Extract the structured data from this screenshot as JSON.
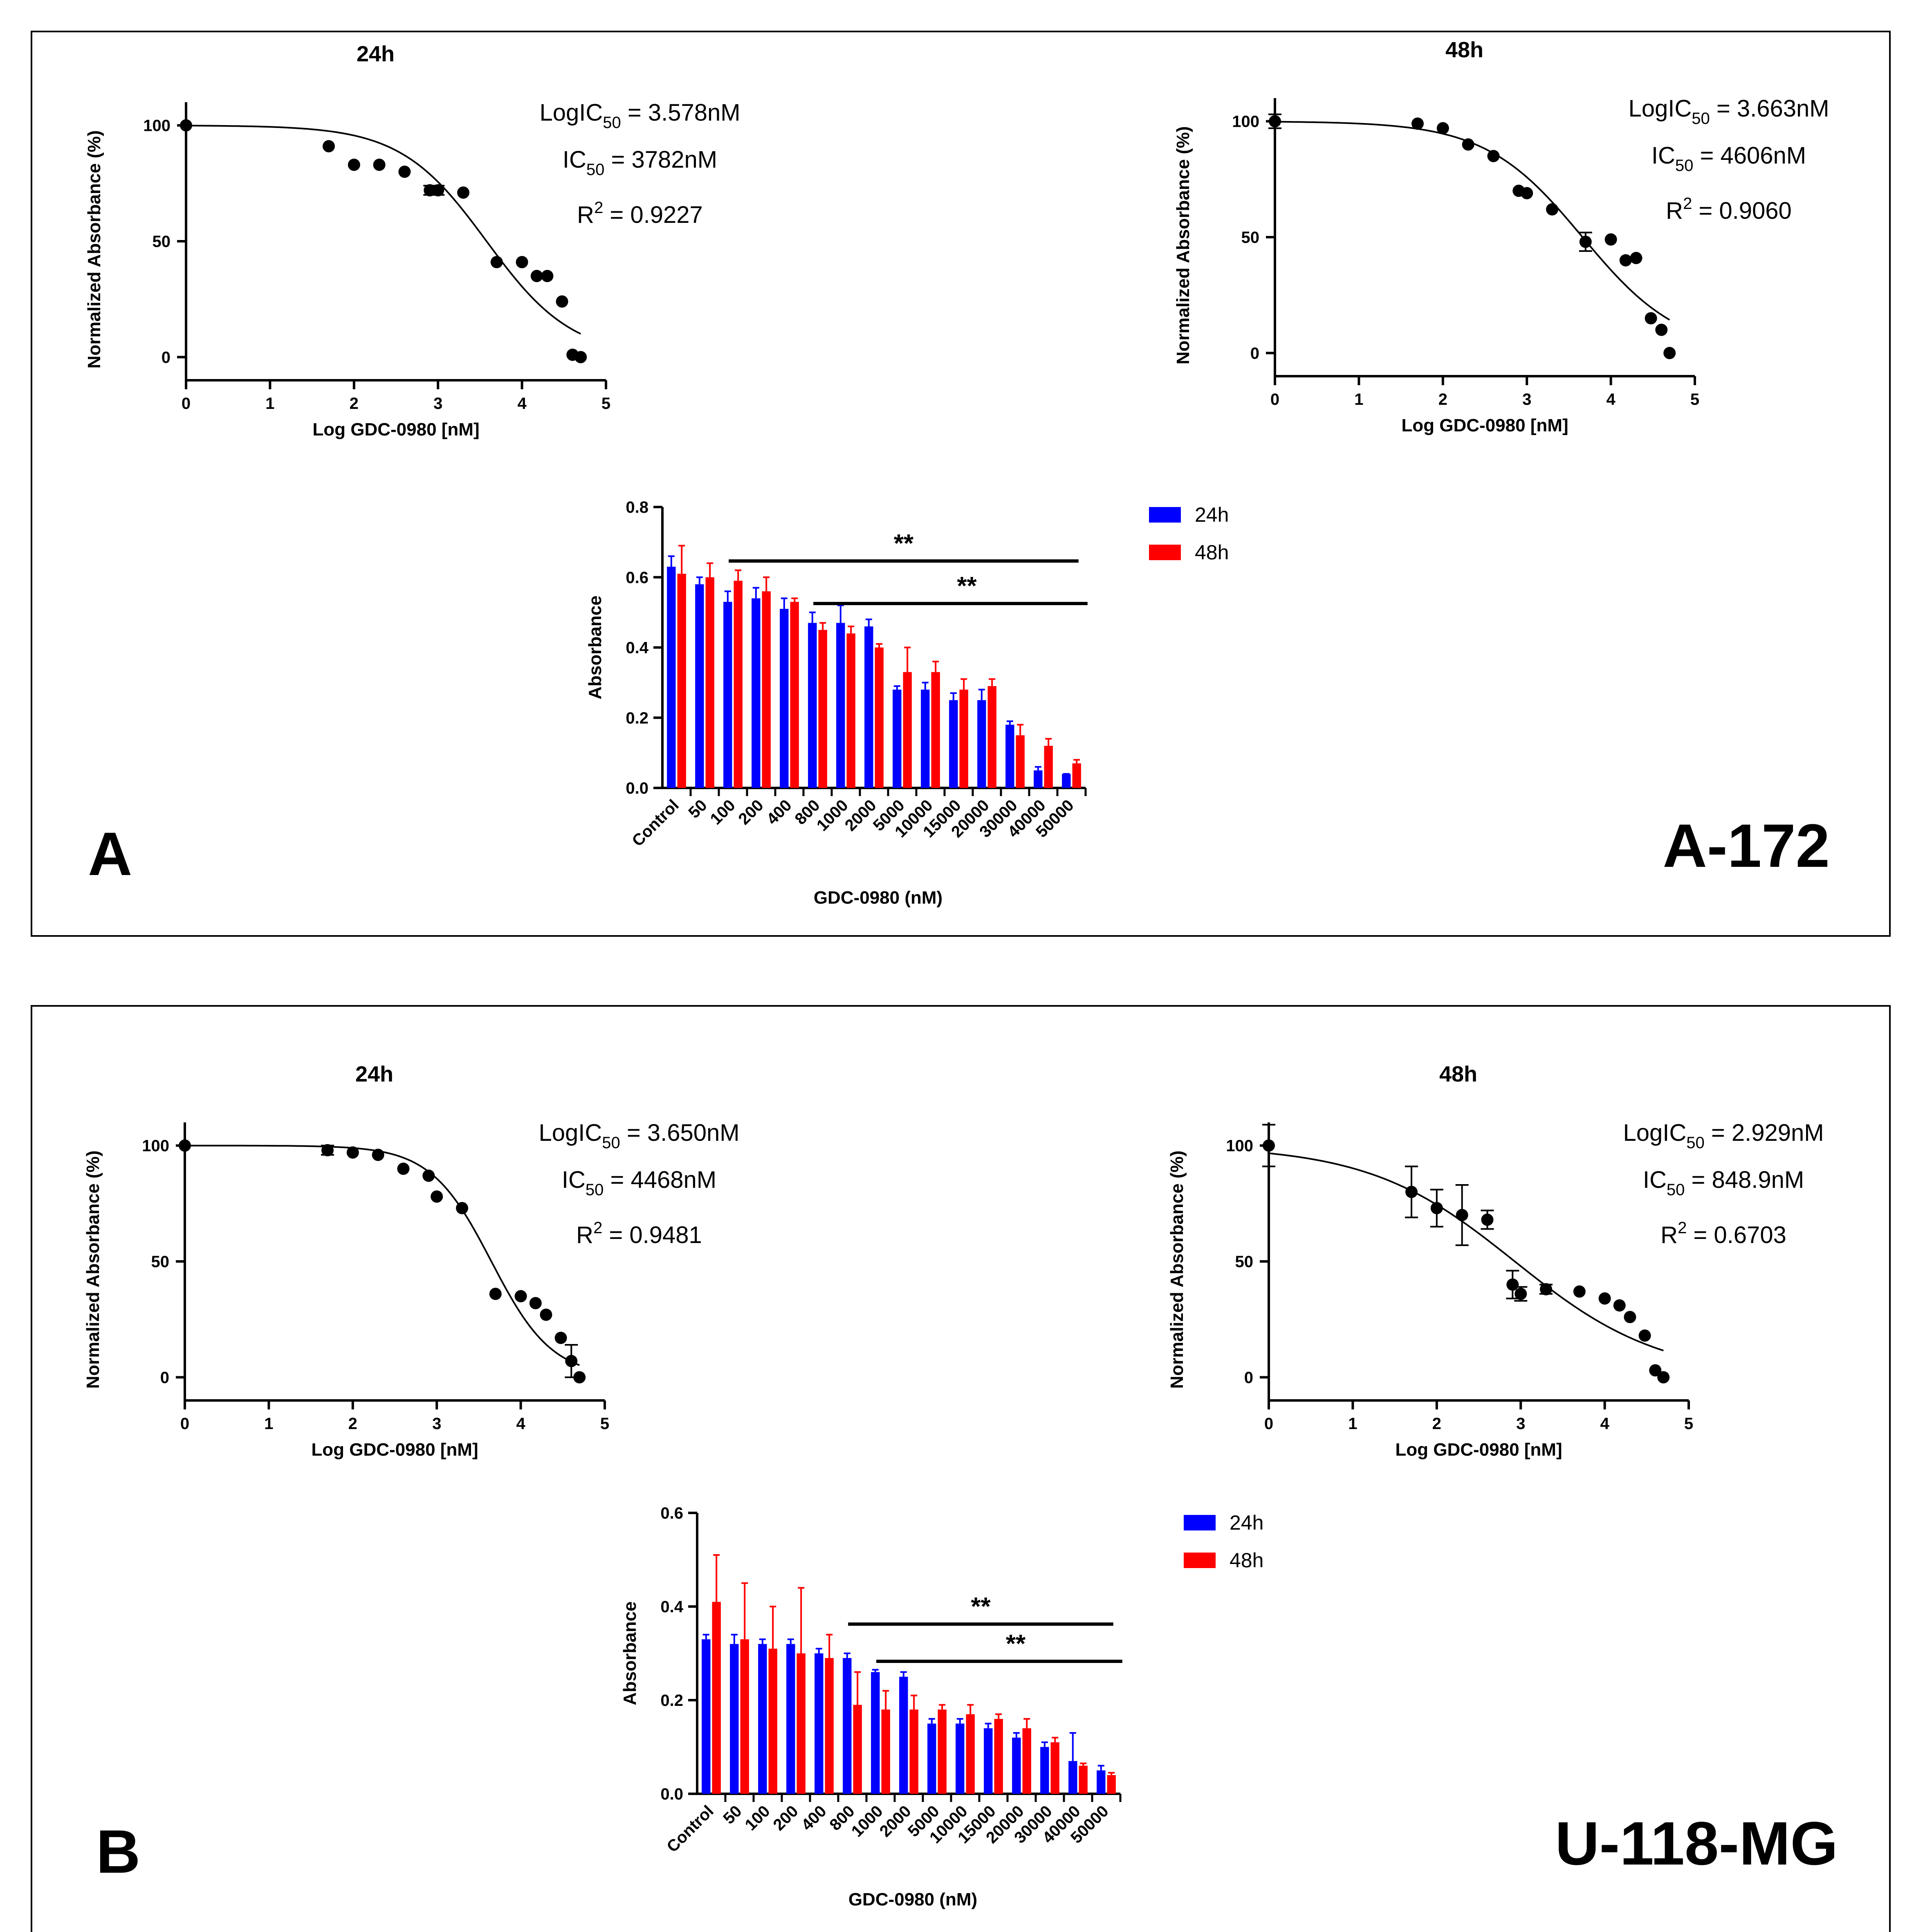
{
  "panels": [
    {
      "letter": "A",
      "cell_line": "A-172",
      "curves": [
        {
          "title": "24h",
          "xlabel": "Log GDC-0980 [nM]",
          "ylabel": "Normalized Absorbance (%)",
          "logic50": {
            "prefix": "LogIC",
            "sub": "50",
            "value": " = 3.578nM"
          },
          "ic50": {
            "prefix": "IC",
            "sub": "50",
            "value": " = 3782nM"
          },
          "r2": {
            "prefix": "R",
            "sup": "2",
            "value": " = 0.9227"
          }
        },
        {
          "title": "48h",
          "xlabel": "Log GDC-0980 [nM]",
          "ylabel": "Normalized Absorbance (%)",
          "logic50": {
            "prefix": "LogIC",
            "sub": "50",
            "value": " = 3.663nM"
          },
          "ic50": {
            "prefix": "IC",
            "sub": "50",
            "value": " = 4606nM"
          },
          "r2": {
            "prefix": "R",
            "sup": "2",
            "value": " = 0.9060"
          }
        }
      ],
      "bar": {
        "xlabel": "GDC-0980 (nM)",
        "ylabel": "Absorbance",
        "legend": [
          {
            "label": "24h",
            "color": "#0000ff"
          },
          {
            "label": "48h",
            "color": "#ff0000"
          }
        ],
        "sig": [
          "**",
          "**"
        ]
      }
    },
    {
      "letter": "B",
      "cell_line": "U-118-MG",
      "curves": [
        {
          "title": "24h",
          "xlabel": "Log GDC-0980 [nM]",
          "ylabel": "Normalized Absorbance (%)",
          "logic50": {
            "prefix": "LogIC",
            "sub": "50",
            "value": " = 3.650nM"
          },
          "ic50": {
            "prefix": "IC",
            "sub": "50",
            "value": " = 4468nM"
          },
          "r2": {
            "prefix": "R",
            "sup": "2",
            "value": " = 0.9481"
          }
        },
        {
          "title": "48h",
          "xlabel": "Log GDC-0980 [nM]",
          "ylabel": "Normalized Absorbance (%)",
          "logic50": {
            "prefix": "LogIC",
            "sub": "50",
            "value": " = 2.929nM"
          },
          "ic50": {
            "prefix": "IC",
            "sub": "50",
            "value": " = 848.9nM"
          },
          "r2": {
            "prefix": "R",
            "sup": "2",
            "value": " = 0.6703"
          }
        }
      ],
      "bar": {
        "xlabel": "GDC-0980 (nM)",
        "ylabel": "Absorbance",
        "legend": [
          {
            "label": "24h",
            "color": "#0000ff"
          },
          {
            "label": "48h",
            "color": "#ff0000"
          }
        ],
        "sig": [
          "**",
          "**"
        ]
      }
    }
  ],
  "chart_data": [
    {
      "id": "A-172 24h dose-response",
      "type": "scatter",
      "title": "24h",
      "xlabel": "Log GDC-0980 [nM]",
      "ylabel": "Normalized Absorbance (%)",
      "xlim": [
        0,
        5
      ],
      "ylim": [
        -10,
        110
      ],
      "xticks": [
        0,
        1,
        2,
        3,
        4,
        5
      ],
      "yticks": [
        0,
        50,
        100
      ],
      "x": [
        0,
        1.699,
        2,
        2.301,
        2.602,
        2.903,
        3,
        3.301,
        3.699,
        4,
        4.176,
        4.301,
        4.477,
        4.602,
        4.699
      ],
      "y": [
        100,
        91,
        83,
        83,
        80,
        72,
        72,
        71,
        41,
        41,
        35,
        35,
        24,
        1,
        0
      ],
      "yerr": [
        0,
        0,
        0,
        0,
        0,
        2,
        2,
        0,
        0,
        0,
        0,
        0,
        0,
        0,
        0
      ],
      "fit": {
        "top": 100,
        "bottom": 0,
        "logIC50": 3.578,
        "hill": 0.85
      }
    },
    {
      "id": "A-172 48h dose-response",
      "type": "scatter",
      "title": "48h",
      "xlabel": "Log GDC-0980 [nM]",
      "ylabel": "Normalized Absorbance (%)",
      "xlim": [
        0,
        5
      ],
      "ylim": [
        -10,
        110
      ],
      "xticks": [
        0,
        1,
        2,
        3,
        4,
        5
      ],
      "yticks": [
        0,
        50,
        100
      ],
      "x": [
        0,
        1.699,
        2,
        2.301,
        2.602,
        2.903,
        3,
        3.301,
        3.699,
        4,
        4.176,
        4.301,
        4.477,
        4.602,
        4.699
      ],
      "y": [
        100,
        99,
        97,
        90,
        85,
        70,
        69,
        62,
        48,
        49,
        40,
        41,
        15,
        10,
        0
      ],
      "yerr": [
        3,
        0,
        0,
        0,
        0,
        0,
        0,
        0,
        4,
        0,
        0,
        0,
        0,
        0,
        0
      ],
      "fit": {
        "top": 100,
        "bottom": 0,
        "logIC50": 3.663,
        "hill": 0.75
      }
    },
    {
      "id": "U-118-MG 24h dose-response",
      "type": "scatter",
      "title": "24h",
      "xlabel": "Log GDC-0980 [nM]",
      "ylabel": "Normalized Absorbance (%)",
      "xlim": [
        0,
        5
      ],
      "ylim": [
        -10,
        110
      ],
      "xticks": [
        0,
        1,
        2,
        3,
        4,
        5
      ],
      "yticks": [
        0,
        50,
        100
      ],
      "x": [
        0,
        1.699,
        2,
        2.301,
        2.602,
        2.903,
        3,
        3.301,
        3.699,
        4,
        4.176,
        4.301,
        4.477,
        4.602,
        4.699
      ],
      "y": [
        100,
        98,
        97,
        96,
        90,
        87,
        78,
        73,
        36,
        35,
        32,
        27,
        17,
        7,
        0
      ],
      "yerr": [
        0,
        2,
        0,
        0,
        0,
        0,
        0,
        0,
        0,
        0,
        0,
        0,
        0,
        7,
        0
      ],
      "fit": {
        "top": 100,
        "bottom": 0,
        "logIC50": 3.65,
        "hill": 1.2
      }
    },
    {
      "id": "U-118-MG 48h dose-response",
      "type": "scatter",
      "title": "48h",
      "xlabel": "Log GDC-0980 [nM]",
      "ylabel": "Normalized Absorbance (%)",
      "xlim": [
        0,
        5
      ],
      "ylim": [
        -10,
        110
      ],
      "xticks": [
        0,
        1,
        2,
        3,
        4,
        5
      ],
      "yticks": [
        0,
        50,
        100
      ],
      "x": [
        0,
        1.699,
        2,
        2.301,
        2.602,
        2.903,
        3,
        3.301,
        3.699,
        4,
        4.176,
        4.301,
        4.477,
        4.602,
        4.699
      ],
      "y": [
        100,
        80,
        73,
        70,
        68,
        40,
        36,
        38,
        37,
        34,
        31,
        26,
        18,
        3,
        0
      ],
      "yerr": [
        9,
        11,
        8,
        13,
        4,
        6,
        3,
        2,
        0,
        0,
        0,
        0,
        0,
        0,
        0
      ],
      "fit": {
        "top": 100,
        "bottom": 0,
        "logIC50": 2.929,
        "hill": 0.5
      }
    },
    {
      "id": "A-172 absorbance bars",
      "type": "bar",
      "xlabel": "GDC-0980 (nM)",
      "ylabel": "Absorbance",
      "ylim": [
        0,
        0.8
      ],
      "yticks": [
        0.0,
        0.2,
        0.4,
        0.6,
        0.8
      ],
      "categories": [
        "Control",
        "50",
        "100",
        "200",
        "400",
        "800",
        "1000",
        "2000",
        "5000",
        "10000",
        "15000",
        "20000",
        "30000",
        "40000",
        "50000"
      ],
      "series": [
        {
          "name": "24h",
          "color": "#0000ff",
          "values": [
            0.63,
            0.58,
            0.53,
            0.54,
            0.51,
            0.47,
            0.47,
            0.46,
            0.28,
            0.28,
            0.25,
            0.25,
            0.18,
            0.05,
            0.04
          ],
          "err": [
            0.03,
            0.02,
            0.03,
            0.03,
            0.03,
            0.03,
            0.05,
            0.02,
            0.01,
            0.02,
            0.02,
            0.03,
            0.01,
            0.01,
            0.0
          ]
        },
        {
          "name": "48h",
          "color": "#ff0000",
          "values": [
            0.61,
            0.6,
            0.59,
            0.56,
            0.53,
            0.45,
            0.44,
            0.4,
            0.33,
            0.33,
            0.28,
            0.29,
            0.15,
            0.12,
            0.07
          ],
          "err": [
            0.08,
            0.04,
            0.03,
            0.04,
            0.01,
            0.02,
            0.02,
            0.01,
            0.07,
            0.03,
            0.03,
            0.02,
            0.03,
            0.02,
            0.01
          ]
        }
      ],
      "significance": [
        {
          "label": "**",
          "from": "100",
          "to": "50000"
        },
        {
          "label": "**",
          "from": "800",
          "to": "50000"
        }
      ]
    },
    {
      "id": "U-118-MG absorbance bars",
      "type": "bar",
      "xlabel": "GDC-0980 (nM)",
      "ylabel": "Absorbance",
      "ylim": [
        0,
        0.6
      ],
      "yticks": [
        0.0,
        0.2,
        0.4,
        0.6
      ],
      "categories": [
        "Control",
        "50",
        "100",
        "200",
        "400",
        "800",
        "1000",
        "2000",
        "5000",
        "10000",
        "15000",
        "20000",
        "30000",
        "40000",
        "50000"
      ],
      "series": [
        {
          "name": "24h",
          "color": "#0000ff",
          "values": [
            0.33,
            0.32,
            0.32,
            0.32,
            0.3,
            0.29,
            0.26,
            0.25,
            0.15,
            0.15,
            0.14,
            0.12,
            0.1,
            0.07,
            0.05
          ],
          "err": [
            0.01,
            0.02,
            0.01,
            0.01,
            0.01,
            0.01,
            0.005,
            0.01,
            0.01,
            0.01,
            0.01,
            0.01,
            0.01,
            0.06,
            0.01
          ]
        },
        {
          "name": "48h",
          "color": "#ff0000",
          "values": [
            0.41,
            0.33,
            0.31,
            0.3,
            0.29,
            0.19,
            0.18,
            0.18,
            0.18,
            0.17,
            0.16,
            0.14,
            0.11,
            0.06,
            0.04
          ],
          "err": [
            0.1,
            0.12,
            0.09,
            0.14,
            0.05,
            0.07,
            0.04,
            0.03,
            0.01,
            0.02,
            0.01,
            0.02,
            0.01,
            0.005,
            0.005
          ]
        }
      ],
      "significance": [
        {
          "label": "**",
          "from": "800",
          "to": "50000"
        },
        {
          "label": "**",
          "from": "1000",
          "to": "50000"
        }
      ]
    }
  ]
}
